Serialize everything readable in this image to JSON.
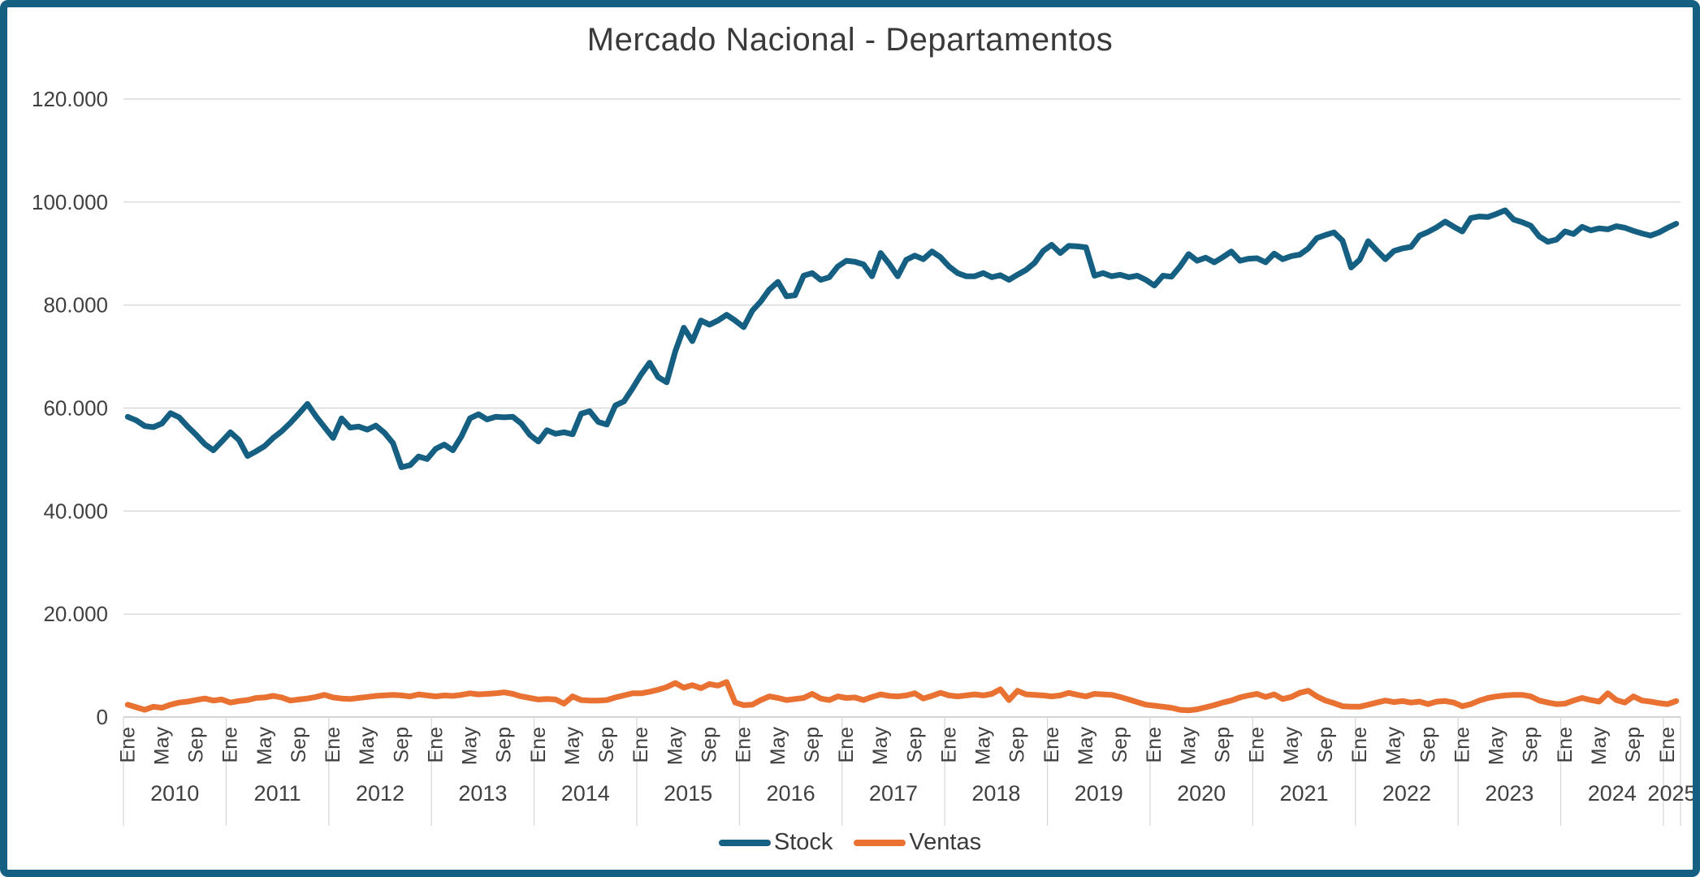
{
  "title": "Mercado Nacional - Departamentos",
  "colors": {
    "frame_border": "#156082",
    "gridline": "#d9d9d9",
    "axis_line": "#c6c6c6",
    "separator": "#d9d9d9",
    "tick_text": "#404040",
    "title_text": "#3a3a3a"
  },
  "chart_data": {
    "type": "line",
    "title": "Mercado Nacional - Departamentos",
    "xlabel": "",
    "ylabel": "",
    "ylim": [
      0,
      120000
    ],
    "grid": "horizontal",
    "legend_position": "bottom",
    "x_start": "2010-01",
    "x_end": "2025-02",
    "points_count": 182,
    "y_tick_labels": [
      "0",
      "20.000",
      "40.000",
      "60.000",
      "80.000",
      "100.000",
      "120.000"
    ],
    "y_tick_values": [
      0,
      20000,
      40000,
      60000,
      80000,
      100000,
      120000
    ],
    "month_tick_names": [
      "Ene",
      "May",
      "Sep"
    ],
    "month_tick_offsets": [
      0,
      4,
      8
    ],
    "year_labels": [
      "2010",
      "2011",
      "2012",
      "2013",
      "2014",
      "2015",
      "2016",
      "2017",
      "2018",
      "2019",
      "2020",
      "2021",
      "2022",
      "2023",
      "2024",
      "2025"
    ],
    "series": [
      {
        "name": "Stock",
        "color": "#156082",
        "stroke_width": 7,
        "values": [
          58300,
          57600,
          56500,
          56300,
          57000,
          59000,
          58200,
          56400,
          54800,
          53000,
          51800,
          53500,
          55300,
          53800,
          50700,
          51600,
          52600,
          54200,
          55500,
          57100,
          58900,
          60800,
          58400,
          56300,
          54200,
          58000,
          56200,
          56400,
          55800,
          56600,
          55200,
          53200,
          48500,
          48900,
          50600,
          50100,
          52100,
          52900,
          51800,
          54500,
          58000,
          58800,
          57800,
          58300,
          58200,
          58300,
          57000,
          54800,
          53500,
          55700,
          55000,
          55300,
          54900,
          58900,
          59400,
          57300,
          56800,
          60500,
          61300,
          63800,
          66500,
          68800,
          66000,
          65000,
          71000,
          75600,
          73000,
          77000,
          76200,
          77000,
          78100,
          77000,
          75700,
          78900,
          80700,
          83000,
          84500,
          81700,
          81900,
          85700,
          86200,
          84900,
          85400,
          87500,
          88600,
          88400,
          87900,
          85600,
          90100,
          88000,
          85600,
          88800,
          89600,
          88900,
          90400,
          89300,
          87500,
          86200,
          85600,
          85600,
          86200,
          85400,
          85800,
          84900,
          85900,
          86800,
          88200,
          90500,
          91700,
          90100,
          91500,
          91400,
          91200,
          85700,
          86200,
          85600,
          85900,
          85400,
          85700,
          84900,
          83800,
          85700,
          85500,
          87500,
          89900,
          88600,
          89200,
          88300,
          89300,
          90400,
          88600,
          89000,
          89100,
          88300,
          90000,
          88900,
          89500,
          89800,
          91000,
          93000,
          93600,
          94100,
          92500,
          87300,
          88800,
          92400,
          90600,
          88900,
          90500,
          91000,
          91300,
          93500,
          94200,
          95100,
          96200,
          95200,
          94300,
          96900,
          97200,
          97100,
          97700,
          98400,
          96600,
          96100,
          95400,
          93300,
          92300,
          92700,
          94300,
          93800,
          95200,
          94500,
          94900,
          94700,
          95300,
          95000,
          94400,
          93900,
          93500,
          94100,
          95000,
          95800
        ]
      },
      {
        "name": "Ventas",
        "color": "#E97132",
        "stroke_width": 7,
        "values": [
          2400,
          1900,
          1400,
          2000,
          1800,
          2400,
          2800,
          3000,
          3300,
          3600,
          3200,
          3400,
          2800,
          3100,
          3300,
          3700,
          3800,
          4100,
          3800,
          3200,
          3400,
          3600,
          3900,
          4300,
          3800,
          3600,
          3500,
          3700,
          3900,
          4100,
          4200,
          4300,
          4200,
          4000,
          4400,
          4200,
          4000,
          4200,
          4100,
          4300,
          4600,
          4400,
          4500,
          4600,
          4800,
          4500,
          4000,
          3700,
          3400,
          3500,
          3400,
          2600,
          4000,
          3300,
          3200,
          3200,
          3300,
          3800,
          4200,
          4600,
          4600,
          4900,
          5300,
          5800,
          6600,
          5700,
          6200,
          5600,
          6400,
          6100,
          6800,
          2800,
          2300,
          2400,
          3300,
          4000,
          3700,
          3300,
          3500,
          3700,
          4500,
          3600,
          3300,
          4000,
          3700,
          3800,
          3300,
          3900,
          4400,
          4100,
          4000,
          4200,
          4600,
          3600,
          4100,
          4700,
          4200,
          4000,
          4200,
          4400,
          4200,
          4500,
          5400,
          3300,
          5100,
          4400,
          4300,
          4200,
          4000,
          4200,
          4700,
          4300,
          4000,
          4500,
          4400,
          4300,
          3900,
          3400,
          2900,
          2400,
          2200,
          2000,
          1800,
          1400,
          1300,
          1500,
          1900,
          2300,
          2800,
          3200,
          3800,
          4200,
          4500,
          3900,
          4400,
          3500,
          3900,
          4700,
          5100,
          4000,
          3200,
          2700,
          2100,
          2000,
          2000,
          2400,
          2800,
          3200,
          2900,
          3100,
          2800,
          3000,
          2500,
          3000,
          3100,
          2800,
          2100,
          2500,
          3200,
          3700,
          4000,
          4200,
          4300,
          4300,
          4000,
          3200,
          2800,
          2500,
          2600,
          3200,
          3700,
          3300,
          3000,
          4600,
          3300,
          2800,
          4000,
          3200,
          3000,
          2700,
          2500,
          3100
        ]
      }
    ]
  }
}
